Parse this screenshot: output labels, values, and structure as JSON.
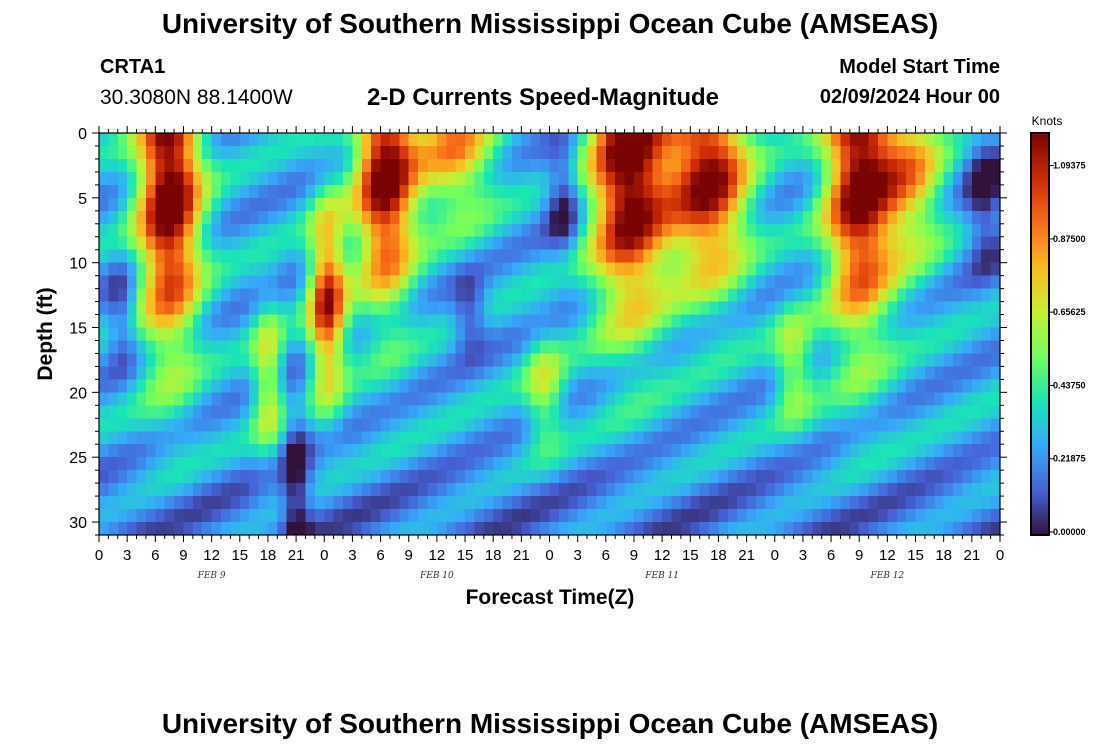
{
  "header": {
    "title": "University of Southern Mississippi Ocean Cube (AMSEAS)",
    "station": "CRTA1",
    "coords": "30.3080N  88.1400W",
    "subtitle": "2-D Currents Speed-Magnitude",
    "model_start_label": "Model Start Time",
    "model_start_value": "02/09/2024 Hour 00"
  },
  "footer": {
    "title": "University of Southern Mississippi Ocean Cube (AMSEAS)"
  },
  "chart_data": {
    "type": "heatmap",
    "xlabel": "Forecast Time(Z)",
    "ylabel": "Depth (ft)",
    "colorbar_label": "Knots",
    "x_range_hours": [
      0,
      96
    ],
    "x_ticks": [
      "0",
      "3",
      "6",
      "9",
      "12",
      "15",
      "18",
      "21",
      "0",
      "3",
      "6",
      "9",
      "12",
      "15",
      "18",
      "21",
      "0",
      "3",
      "6",
      "9",
      "12",
      "15",
      "18",
      "21",
      "0",
      "3",
      "6",
      "9",
      "12",
      "15",
      "18",
      "21",
      "0"
    ],
    "day_labels": [
      "FEB 9",
      "FEB 10",
      "FEB 11",
      "FEB 12"
    ],
    "ylim": [
      0,
      31
    ],
    "y_ticks": [
      0,
      5,
      10,
      15,
      20,
      25,
      30
    ],
    "y_inverted": true,
    "colorbar_ticks": [
      "0.00000",
      "0.21875",
      "0.43750",
      "0.65625",
      "0.87500",
      "1.09375"
    ],
    "colorbar_range": [
      0,
      1.2
    ],
    "colormap": [
      "#30123b",
      "#4662d7",
      "#36aaf9",
      "#1ae4b6",
      "#72fe5e",
      "#c7ef34",
      "#fabb21",
      "#f66b19",
      "#cb2a04",
      "#7a0403"
    ],
    "strong_current_periods_hours": [
      [
        4,
        11
      ],
      [
        28,
        33
      ],
      [
        54,
        60
      ],
      [
        60,
        67
      ],
      [
        78,
        83
      ]
    ],
    "peak_speed_knots": 1.15
  }
}
